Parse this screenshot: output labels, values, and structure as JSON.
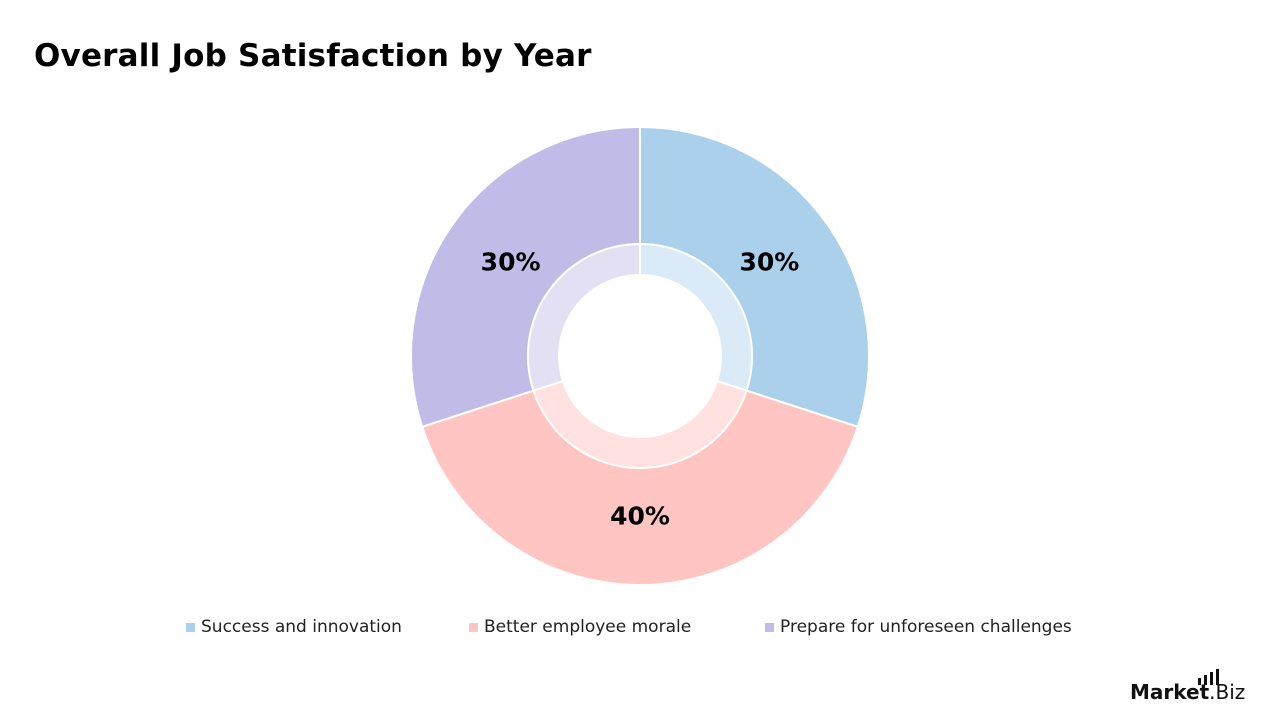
{
  "chart_data": {
    "type": "pie",
    "title": "Overall Job Satisfaction by Year",
    "categories": [
      "Success and innovation",
      "Better employee morale",
      "Prepare for unforeseen challenges"
    ],
    "values": [
      30,
      40,
      30
    ],
    "value_labels": [
      "30%",
      "40%",
      "30%"
    ],
    "colors": [
      "#aad0eb",
      "#ffc5c2",
      "#c1bbe8"
    ],
    "inner_ring_colors": [
      "#dbeaf7",
      "#ffe1df",
      "#e3e0f4"
    ],
    "style": "donut",
    "legend_position": "bottom"
  },
  "logo": {
    "text": "Market.Biz"
  }
}
